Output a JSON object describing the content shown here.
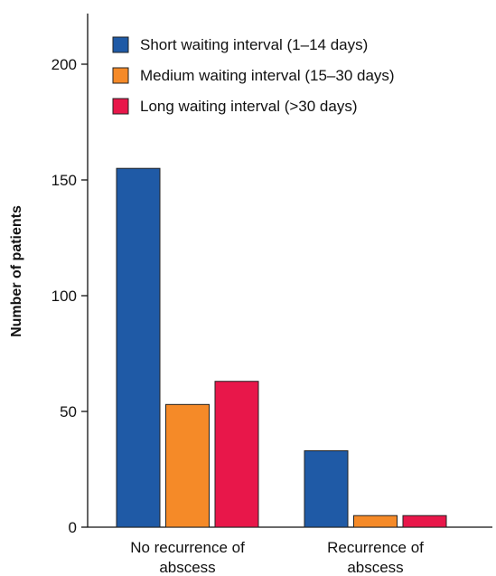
{
  "chart_data": {
    "type": "bar",
    "title": "",
    "xlabel": "",
    "ylabel": "Number of patients",
    "ylim": [
      0,
      220
    ],
    "yticks": [
      0,
      50,
      100,
      150,
      200
    ],
    "grid": false,
    "legend_position": "top-left",
    "categories": [
      [
        "No recurrence of",
        "abscess"
      ],
      [
        "Recurrence of",
        "abscess"
      ]
    ],
    "series": [
      {
        "name": "Short waiting interval (1–14 days)",
        "color": "#1f5aa6",
        "values": [
          155,
          33
        ]
      },
      {
        "name": "Medium waiting interval (15–30 days)",
        "color": "#f58a28",
        "values": [
          53,
          5
        ]
      },
      {
        "name": "Long waiting interval (>30 days)",
        "color": "#e8174a",
        "values": [
          63,
          5
        ]
      }
    ]
  }
}
